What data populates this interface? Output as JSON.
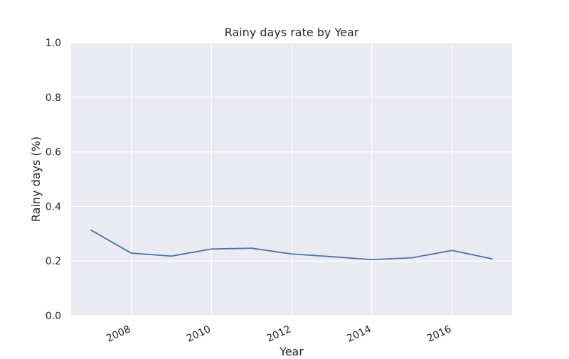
{
  "chart_data": {
    "type": "line",
    "title": "Rainy days rate by Year",
    "xlabel": "Year",
    "ylabel": "Rainy days (%)",
    "xlim": [
      2006.5,
      2017.5
    ],
    "ylim": [
      0,
      1.0
    ],
    "x_ticks": [
      2008,
      2010,
      2012,
      2014,
      2016
    ],
    "y_ticks": [
      0.0,
      0.2,
      0.4,
      0.6,
      0.8,
      1.0
    ],
    "y_tick_labels": [
      "0.0",
      "0.2",
      "0.4",
      "0.6",
      "0.8",
      "1.0"
    ],
    "grid": true,
    "series": [
      {
        "x": [
          2007,
          2008,
          2009,
          2010,
          2011,
          2012,
          2013,
          2014,
          2015,
          2016,
          2017
        ],
        "values": [
          0.313,
          0.229,
          0.218,
          0.244,
          0.247,
          0.226,
          0.216,
          0.205,
          0.212,
          0.239,
          0.208
        ],
        "color": "#4c72b0"
      }
    ]
  }
}
